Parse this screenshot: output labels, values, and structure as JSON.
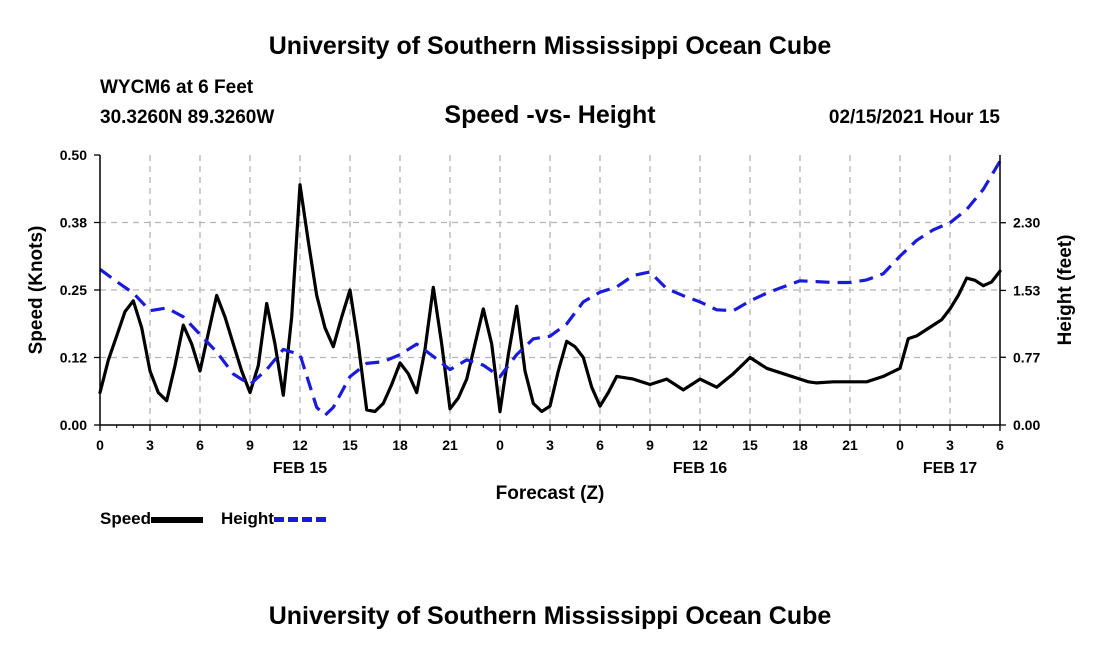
{
  "header": {
    "banner_top": "University of Southern Mississippi Ocean Cube",
    "banner_bottom": "University of Southern Mississippi Ocean Cube",
    "station": "WYCM6 at 6 Feet",
    "coords": "30.3260N 89.3260W",
    "datetime": "02/15/2021 Hour 15"
  },
  "legend": {
    "speed_label": "Speed",
    "height_label": "Height"
  },
  "colors": {
    "speed": "#000000",
    "height": "#1a1adc",
    "grid": "#b4b4b4"
  },
  "chart_data": {
    "type": "line",
    "title": "Speed -vs- Height",
    "xlabel": "Forecast (Z)",
    "ylabel": "Speed (Knots)",
    "ylabel_right": "Height (feet)",
    "xlim": [
      0,
      54
    ],
    "ylim": [
      0,
      0.5
    ],
    "ylim_right": [
      0,
      3.07
    ],
    "x_ticks": [
      0,
      3,
      6,
      9,
      12,
      15,
      18,
      21,
      24,
      27,
      30,
      33,
      36,
      39,
      42,
      45,
      48,
      51,
      54
    ],
    "x_tick_labels": [
      "0",
      "3",
      "6",
      "9",
      "12",
      "15",
      "18",
      "21",
      "0",
      "3",
      "6",
      "9",
      "12",
      "15",
      "18",
      "21",
      "0",
      "3",
      "6"
    ],
    "y_ticks": [
      0,
      0.125,
      0.25,
      0.375,
      0.5
    ],
    "y_tick_labels": [
      "0.00",
      "0.12",
      "0.25",
      "0.38",
      "0.50"
    ],
    "y_right_ticks": [
      0,
      0.77,
      1.53,
      2.3
    ],
    "y_right_tick_labels": [
      "0.00",
      "0.77",
      "1.53",
      "2.30"
    ],
    "date_labels": [
      {
        "x": 12,
        "label": "FEB 15"
      },
      {
        "x": 36,
        "label": "FEB 16"
      },
      {
        "x": 51,
        "label": "FEB 17"
      }
    ],
    "series": [
      {
        "name": "Speed",
        "axis": "left",
        "style": "solid",
        "x": [
          0,
          0.5,
          1,
          1.5,
          2,
          2.5,
          3,
          3.5,
          4,
          4.5,
          5,
          5.5,
          6,
          6.5,
          7,
          7.5,
          8,
          8.5,
          9,
          9.5,
          10,
          10.5,
          11,
          11.5,
          12,
          12.5,
          13,
          13.5,
          14,
          14.5,
          15,
          15.5,
          16,
          16.5,
          17,
          17.5,
          18,
          18.5,
          19,
          19.5,
          20,
          20.5,
          21,
          21.5,
          22,
          22.5,
          23,
          23.5,
          24,
          24.5,
          25,
          25.5,
          26,
          26.5,
          27,
          27.5,
          28,
          28.5,
          29,
          29.5,
          30,
          30.5,
          31,
          32,
          33,
          34,
          35,
          36,
          37,
          38,
          39,
          40,
          41,
          42,
          42.5,
          43,
          44,
          45,
          46,
          47,
          48,
          48.5,
          49,
          49.5,
          50,
          50.5,
          51,
          51.5,
          52,
          52.5,
          53,
          53.5,
          54
        ],
        "values": [
          0.06,
          0.12,
          0.165,
          0.21,
          0.23,
          0.18,
          0.1,
          0.06,
          0.045,
          0.11,
          0.185,
          0.15,
          0.1,
          0.17,
          0.24,
          0.2,
          0.15,
          0.1,
          0.06,
          0.11,
          0.225,
          0.15,
          0.055,
          0.2,
          0.445,
          0.34,
          0.24,
          0.18,
          0.145,
          0.2,
          0.25,
          0.15,
          0.028,
          0.025,
          0.04,
          0.075,
          0.115,
          0.095,
          0.06,
          0.14,
          0.255,
          0.15,
          0.03,
          0.05,
          0.085,
          0.15,
          0.215,
          0.15,
          0.025,
          0.13,
          0.22,
          0.1,
          0.04,
          0.025,
          0.035,
          0.1,
          0.155,
          0.145,
          0.125,
          0.07,
          0.035,
          0.06,
          0.09,
          0.085,
          0.075,
          0.085,
          0.065,
          0.085,
          0.07,
          0.095,
          0.125,
          0.105,
          0.095,
          0.085,
          0.08,
          0.078,
          0.08,
          0.08,
          0.08,
          0.09,
          0.105,
          0.16,
          0.165,
          0.175,
          0.185,
          0.195,
          0.215,
          0.24,
          0.272,
          0.268,
          0.258,
          0.265,
          0.285
        ]
      },
      {
        "name": "Height",
        "axis": "right",
        "style": "dashed",
        "x": [
          0,
          1,
          2,
          3,
          4,
          5,
          6,
          7,
          8,
          9,
          10,
          11,
          12,
          13,
          13.5,
          14,
          15,
          16,
          17,
          18,
          19,
          20,
          21,
          22,
          23,
          24,
          25,
          26,
          27,
          28,
          29,
          30,
          31,
          32,
          33,
          34,
          35,
          36,
          37,
          38,
          39,
          40,
          41,
          42,
          43,
          44,
          45,
          46,
          47,
          48,
          49,
          50,
          51,
          52,
          53,
          54
        ],
        "values": [
          1.77,
          1.63,
          1.5,
          1.3,
          1.33,
          1.23,
          1.03,
          0.83,
          0.58,
          0.46,
          0.63,
          0.86,
          0.8,
          0.2,
          0.11,
          0.2,
          0.55,
          0.7,
          0.72,
          0.8,
          0.92,
          0.78,
          0.63,
          0.74,
          0.68,
          0.55,
          0.8,
          0.98,
          1.01,
          1.15,
          1.4,
          1.51,
          1.57,
          1.7,
          1.74,
          1.55,
          1.47,
          1.4,
          1.31,
          1.3,
          1.41,
          1.5,
          1.57,
          1.64,
          1.63,
          1.62,
          1.62,
          1.65,
          1.72,
          1.92,
          2.1,
          2.22,
          2.3,
          2.45,
          2.68,
          3.0
        ]
      }
    ]
  }
}
